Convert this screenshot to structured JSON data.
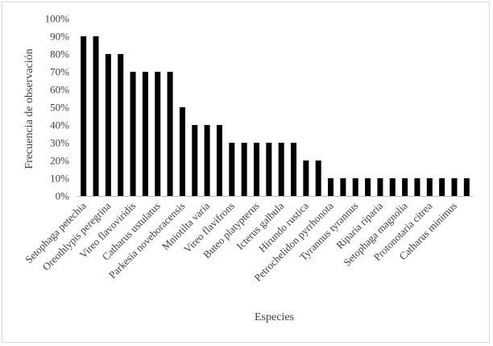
{
  "chart_data": {
    "type": "bar",
    "title": "",
    "xlabel": "Especies",
    "ylabel": "Frecuencia de observación",
    "ylim": [
      0,
      100
    ],
    "y_tick_values": [
      0,
      10,
      20,
      30,
      40,
      50,
      60,
      70,
      80,
      90,
      100
    ],
    "y_tick_labels": [
      "0%",
      "10%",
      "20%",
      "30%",
      "40%",
      "50%",
      "60%",
      "70%",
      "80%",
      "90%",
      "100%"
    ],
    "grid": false,
    "legend": "none",
    "bar_color": "#000000",
    "axis_color": "#bfbfbf",
    "categories": [
      "Setophaga petechia",
      "",
      "Oreothlypis peregrina",
      "",
      "Vireo flavoviridis",
      "",
      "Catharus ustulatus",
      "",
      "Parkesia noveboracensis",
      "",
      "Mniotilta varia",
      "",
      "Vireo flavifrons",
      "",
      "Buteo platypterus",
      "",
      "Icterus galbula",
      "",
      "Hirundo rustica",
      "",
      "Petrochelidon pyrrhonota",
      "",
      "Tyrannus tyrannus",
      "",
      "Riparia riparia",
      "",
      "Setophaga magnolia",
      "",
      "Protonotaria citrea",
      "",
      "Catharus minimus",
      ""
    ],
    "values": [
      90,
      90,
      80,
      80,
      70,
      70,
      70,
      70,
      50,
      40,
      40,
      40,
      30,
      30,
      30,
      30,
      30,
      30,
      20,
      20,
      10,
      10,
      10,
      10,
      10,
      10,
      10,
      10,
      10,
      10,
      10,
      10
    ]
  }
}
